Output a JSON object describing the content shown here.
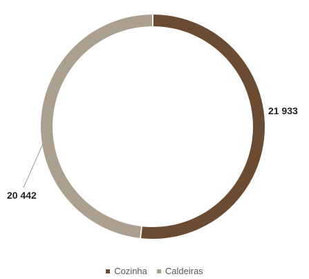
{
  "chart_data": {
    "type": "pie",
    "variant": "donut",
    "categories": [
      "Cozinha",
      "Caldeiras"
    ],
    "values": [
      21933,
      20442
    ],
    "data_labels": [
      "21 933",
      "20 442"
    ],
    "colors": [
      "#6b4c33",
      "#ab9f90"
    ],
    "legend_placement": "bottom"
  }
}
